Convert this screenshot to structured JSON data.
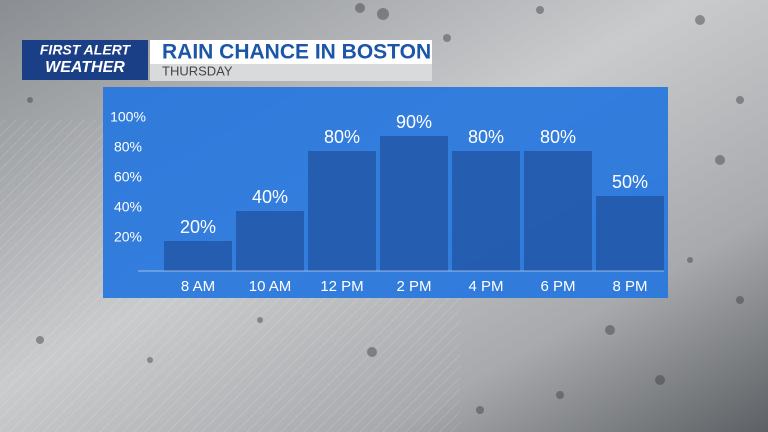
{
  "chart_data": {
    "type": "bar",
    "brand": [
      "FIRST ALERT",
      "WEATHER"
    ],
    "title": "RAIN CHANCE IN BOSTON",
    "subtitle": "THURSDAY",
    "categories": [
      "8 AM",
      "10 AM",
      "12 PM",
      "2 PM",
      "4 PM",
      "6 PM",
      "8 PM"
    ],
    "values": [
      20,
      40,
      80,
      90,
      80,
      80,
      50
    ],
    "value_labels": [
      "20%",
      "40%",
      "80%",
      "90%",
      "80%",
      "80%",
      "50%"
    ],
    "color": "#1d4a93",
    "ylim": [
      0,
      100
    ],
    "yticks": [
      {
        "value": 20,
        "label": "20%"
      },
      {
        "value": 40,
        "label": "40%"
      },
      {
        "value": 60,
        "label": "60%"
      },
      {
        "value": 80,
        "label": "80%"
      },
      {
        "value": 100,
        "label": "100%"
      }
    ]
  }
}
